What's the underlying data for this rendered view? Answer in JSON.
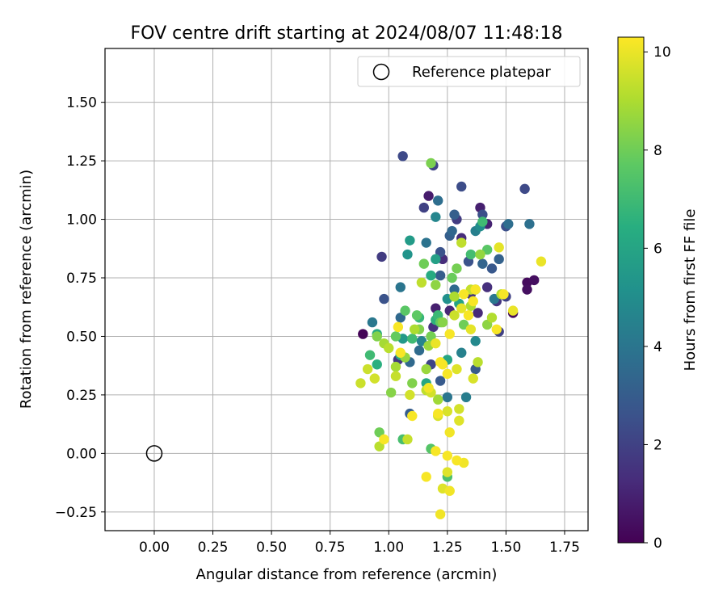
{
  "chart_data": {
    "type": "scatter",
    "title": "FOV centre drift starting at 2024/08/07 11:48:18",
    "xlabel": "Angular distance from reference (arcmin)",
    "ylabel": "Rotation from reference (arcmin)",
    "xlim": [
      -0.21,
      1.85
    ],
    "ylim": [
      -0.33,
      1.73
    ],
    "xticks": [
      "0.00",
      "0.25",
      "0.50",
      "0.75",
      "1.00",
      "1.25",
      "1.50",
      "1.75"
    ],
    "yticks": [
      "−0.25",
      "0.00",
      "0.25",
      "0.50",
      "0.75",
      "1.00",
      "1.25",
      "1.50"
    ],
    "grid": true,
    "legend": {
      "position": "top-right",
      "entries": [
        "Reference platepar"
      ]
    },
    "reference_point": {
      "x": 0.0,
      "y": 0.0,
      "label": "Reference platepar"
    },
    "colorbar": {
      "label": "Hours from first FF file",
      "colormap": "viridis",
      "range": [
        0,
        10.3
      ],
      "ticks": [
        "0",
        "2",
        "4",
        "6",
        "8",
        "10"
      ]
    },
    "series": [
      {
        "points": [
          [
            0.89,
            0.51,
            0.1
          ],
          [
            1.53,
            0.6,
            0.3
          ],
          [
            1.59,
            0.73,
            0.3
          ],
          [
            1.62,
            0.74,
            0.4
          ],
          [
            1.59,
            0.7,
            0.4
          ],
          [
            1.17,
            1.1,
            0.8
          ],
          [
            1.39,
            1.05,
            0.9
          ],
          [
            1.2,
            0.62,
            0.9
          ],
          [
            1.42,
            0.98,
            1.0
          ],
          [
            1.26,
            0.61,
            1.1
          ],
          [
            1.38,
            0.6,
            1.2
          ],
          [
            1.31,
            0.92,
            1.3
          ],
          [
            1.23,
            0.83,
            1.3
          ],
          [
            1.42,
            0.71,
            1.4
          ],
          [
            1.35,
            0.68,
            1.5
          ],
          [
            1.19,
            0.54,
            1.5
          ],
          [
            1.46,
            0.65,
            1.6
          ],
          [
            1.04,
            0.4,
            1.7
          ],
          [
            0.97,
            0.84,
            1.8
          ],
          [
            1.29,
            1.0,
            1.8
          ],
          [
            1.5,
            0.67,
            2.0
          ],
          [
            1.15,
            1.05,
            2.0
          ],
          [
            1.47,
            0.52,
            2.0
          ],
          [
            1.18,
            0.38,
            2.1
          ],
          [
            1.19,
            1.23,
            2.1
          ],
          [
            1.06,
            1.27,
            2.3
          ],
          [
            1.58,
            1.13,
            2.3
          ],
          [
            1.31,
            1.14,
            2.4
          ],
          [
            1.4,
            1.02,
            2.5
          ],
          [
            1.5,
            0.97,
            2.5
          ],
          [
            1.22,
            0.86,
            2.6
          ],
          [
            0.98,
            0.66,
            2.6
          ],
          [
            1.34,
            0.82,
            2.6
          ],
          [
            1.44,
            0.79,
            2.8
          ],
          [
            1.22,
            0.31,
            2.9
          ],
          [
            1.37,
            0.36,
            2.9
          ],
          [
            1.09,
            0.17,
            3.0
          ],
          [
            1.22,
            0.76,
            3.0
          ],
          [
            1.26,
            0.93,
            3.1
          ],
          [
            1.28,
            1.02,
            3.1
          ],
          [
            1.47,
            0.83,
            3.2
          ],
          [
            1.4,
            0.81,
            3.3
          ],
          [
            1.27,
            0.95,
            3.4
          ],
          [
            1.05,
            0.58,
            3.5
          ],
          [
            1.09,
            0.39,
            3.5
          ],
          [
            1.13,
            0.44,
            3.6
          ],
          [
            1.28,
            0.7,
            3.6
          ],
          [
            1.21,
            1.08,
            3.7
          ],
          [
            1.51,
            0.98,
            3.7
          ],
          [
            1.6,
            0.98,
            3.8
          ],
          [
            1.16,
            0.9,
            3.9
          ],
          [
            1.25,
            0.24,
            4.0
          ],
          [
            1.05,
            0.71,
            4.0
          ],
          [
            1.45,
            0.66,
            4.1
          ],
          [
            0.93,
            0.56,
            4.1
          ],
          [
            1.33,
            0.24,
            4.3
          ],
          [
            1.37,
            0.95,
            4.4
          ],
          [
            1.31,
            0.43,
            4.5
          ],
          [
            1.14,
            0.48,
            4.6
          ],
          [
            1.2,
            1.01,
            4.7
          ],
          [
            1.37,
            0.48,
            4.8
          ],
          [
            1.39,
            0.97,
            5.0
          ],
          [
            1.25,
            0.66,
            5.1
          ],
          [
            1.08,
            0.85,
            5.3
          ],
          [
            1.06,
            0.49,
            5.5
          ],
          [
            1.09,
            0.91,
            5.6
          ],
          [
            1.2,
            0.83,
            5.8
          ],
          [
            1.3,
            0.64,
            5.9
          ],
          [
            1.25,
            0.4,
            6.0
          ],
          [
            1.16,
            0.3,
            6.1
          ],
          [
            0.95,
            0.51,
            6.2
          ],
          [
            1.18,
            0.76,
            6.3
          ],
          [
            1.05,
            0.42,
            6.4
          ],
          [
            0.95,
            0.38,
            6.5
          ],
          [
            1.2,
            0.57,
            6.6
          ],
          [
            1.37,
            0.7,
            6.7
          ],
          [
            1.13,
            0.58,
            6.8
          ],
          [
            1.21,
            0.59,
            6.9
          ],
          [
            1.4,
            0.99,
            7.0
          ],
          [
            1.1,
            0.49,
            7.0
          ],
          [
            0.92,
            0.42,
            7.0
          ],
          [
            1.35,
            0.85,
            7.1
          ],
          [
            1.06,
            0.06,
            7.2
          ],
          [
            1.25,
            -0.1,
            7.3
          ],
          [
            1.18,
            0.02,
            7.5
          ],
          [
            1.42,
            0.87,
            7.6
          ],
          [
            1.07,
            0.61,
            7.6
          ],
          [
            1.12,
            0.59,
            7.7
          ],
          [
            1.22,
            0.56,
            7.8
          ],
          [
            1.03,
            0.5,
            7.8
          ],
          [
            1.27,
            0.75,
            7.9
          ],
          [
            1.15,
            0.81,
            8.0
          ],
          [
            1.32,
            0.55,
            8.0
          ],
          [
            0.96,
            0.09,
            8.0
          ],
          [
            1.18,
            0.5,
            8.1
          ],
          [
            1.29,
            0.79,
            8.1
          ],
          [
            1.18,
            1.24,
            8.2
          ],
          [
            1.1,
            0.3,
            8.3
          ],
          [
            1.13,
            0.53,
            8.3
          ],
          [
            0.95,
            0.5,
            8.3
          ],
          [
            1.01,
            0.26,
            8.4
          ],
          [
            1.23,
            0.56,
            8.4
          ],
          [
            1.2,
            0.72,
            8.5
          ],
          [
            1.42,
            0.55,
            8.5
          ],
          [
            1.39,
            0.85,
            8.6
          ],
          [
            1.07,
            0.41,
            8.6
          ],
          [
            1.16,
            0.36,
            8.7
          ],
          [
            1.17,
            0.46,
            8.7
          ],
          [
            1.21,
            0.23,
            8.8
          ],
          [
            0.98,
            0.47,
            8.9
          ],
          [
            1.03,
            0.37,
            8.9
          ],
          [
            1.28,
            0.67,
            9.0
          ],
          [
            1.11,
            0.53,
            9.0
          ],
          [
            1.35,
            0.63,
            9.0
          ],
          [
            1.48,
            0.68,
            9.1
          ],
          [
            1.44,
            0.58,
            9.1
          ],
          [
            0.96,
            0.03,
            9.2
          ],
          [
            1.38,
            0.39,
            9.2
          ],
          [
            1.0,
            0.45,
            9.2
          ],
          [
            1.16,
            0.27,
            9.3
          ],
          [
            1.31,
            0.9,
            9.3
          ],
          [
            1.14,
            0.73,
            9.3
          ],
          [
            1.03,
            0.33,
            9.4
          ],
          [
            1.35,
            0.7,
            9.4
          ],
          [
            1.08,
            0.06,
            9.4
          ],
          [
            0.88,
            0.3,
            9.5
          ],
          [
            0.91,
            0.36,
            9.5
          ],
          [
            1.28,
            0.59,
            9.5
          ],
          [
            1.09,
            0.25,
            9.6
          ],
          [
            0.94,
            0.32,
            9.6
          ],
          [
            1.3,
            0.19,
            9.6
          ],
          [
            1.18,
            0.26,
            9.6
          ],
          [
            1.25,
            0.18,
            9.7
          ],
          [
            1.36,
            0.32,
            9.7
          ],
          [
            1.21,
            0.16,
            9.7
          ],
          [
            1.3,
            0.14,
            9.8
          ],
          [
            1.23,
            -0.15,
            9.8
          ],
          [
            1.25,
            -0.08,
            9.8
          ],
          [
            1.29,
            0.36,
            9.8
          ],
          [
            1.31,
            0.62,
            9.9
          ],
          [
            1.35,
            0.53,
            9.9
          ],
          [
            1.47,
            0.88,
            9.9
          ],
          [
            1.65,
            0.82,
            10.0
          ],
          [
            1.53,
            0.61,
            10.0
          ],
          [
            1.2,
            0.47,
            10.0
          ],
          [
            1.17,
            0.28,
            10.1
          ],
          [
            1.26,
            0.09,
            10.1
          ],
          [
            1.32,
            -0.04,
            10.1
          ],
          [
            1.26,
            -0.16,
            10.1
          ],
          [
            1.22,
            -0.26,
            10.1
          ],
          [
            1.16,
            -0.1,
            10.2
          ],
          [
            1.29,
            -0.03,
            10.2
          ],
          [
            1.25,
            -0.01,
            10.2
          ],
          [
            1.04,
            0.54,
            10.2
          ],
          [
            1.34,
            0.59,
            10.2
          ],
          [
            1.22,
            0.39,
            10.2
          ],
          [
            1.05,
            0.43,
            10.2
          ],
          [
            1.37,
            0.7,
            10.2
          ],
          [
            1.46,
            0.53,
            10.2
          ],
          [
            1.49,
            0.68,
            10.2
          ],
          [
            1.26,
            0.51,
            10.2
          ],
          [
            1.21,
            0.17,
            10.2
          ],
          [
            1.23,
            0.38,
            10.2
          ],
          [
            1.1,
            0.16,
            10.2
          ],
          [
            0.98,
            0.06,
            10.2
          ],
          [
            1.2,
            0.01,
            10.2
          ],
          [
            1.36,
            0.65,
            10.2
          ],
          [
            1.32,
            0.68,
            10.2
          ],
          [
            1.25,
            0.34,
            10.2
          ]
        ]
      }
    ]
  }
}
